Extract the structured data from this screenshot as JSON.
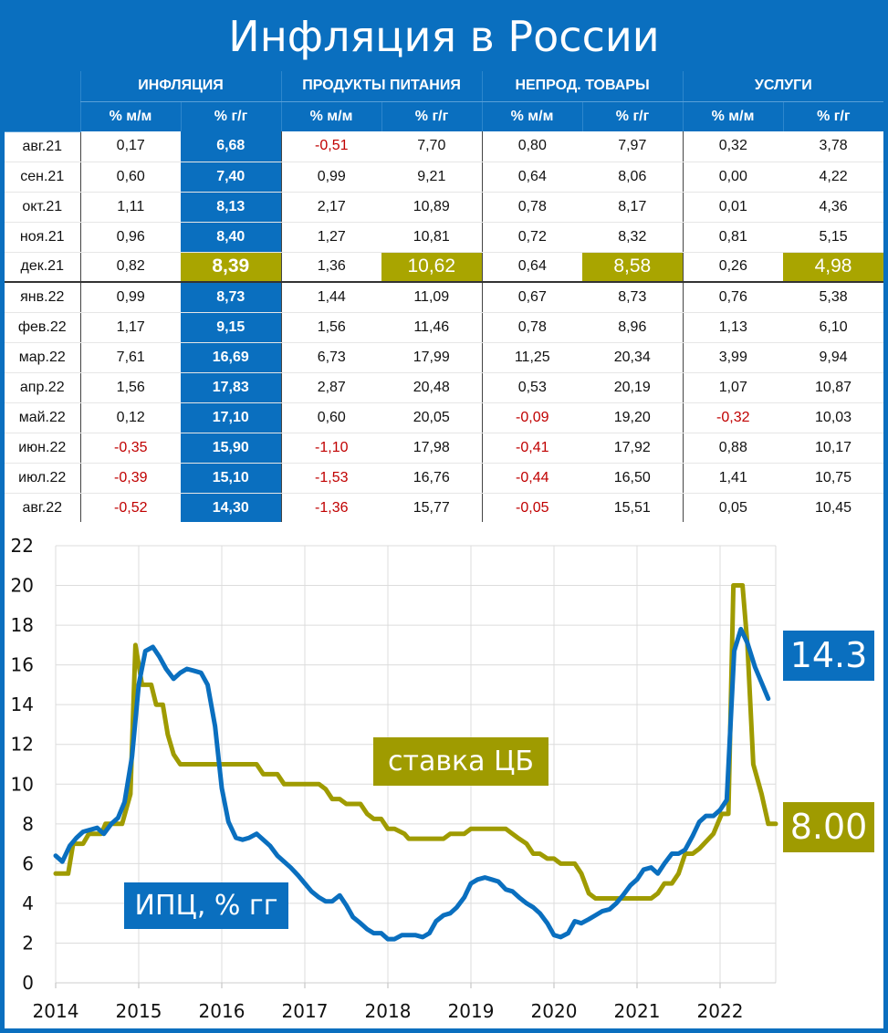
{
  "title": "Инфляция в России",
  "table": {
    "groups": [
      "ИНФЛЯЦИЯ",
      "ПРОДУКТЫ ПИТАНИЯ",
      "НЕПРОД. ТОВАРЫ",
      "УСЛУГИ"
    ],
    "subheaders": [
      "% м/м",
      "% г/г",
      "% м/м",
      "% г/г",
      "% м/м",
      "% г/г",
      "% м/м",
      "% г/г"
    ],
    "rows": [
      {
        "label": "авг.21",
        "values": [
          "0,17",
          "6,68",
          "-0,51",
          "7,70",
          "0,80",
          "7,97",
          "0,32",
          "3,78"
        ]
      },
      {
        "label": "сен.21",
        "values": [
          "0,60",
          "7,40",
          "0,99",
          "9,21",
          "0,64",
          "8,06",
          "0,00",
          "4,22"
        ]
      },
      {
        "label": "окт.21",
        "values": [
          "1,11",
          "8,13",
          "2,17",
          "10,89",
          "0,78",
          "8,17",
          "0,01",
          "4,36"
        ]
      },
      {
        "label": "ноя.21",
        "values": [
          "0,96",
          "8,40",
          "1,27",
          "10,81",
          "0,72",
          "8,32",
          "0,81",
          "5,15"
        ]
      },
      {
        "label": "дек.21",
        "values": [
          "0,82",
          "8,39",
          "1,36",
          "10,62",
          "0,64",
          "8,58",
          "0,26",
          "4,98"
        ],
        "highlight": true
      },
      {
        "label": "янв.22",
        "values": [
          "0,99",
          "8,73",
          "1,44",
          "11,09",
          "0,67",
          "8,73",
          "0,76",
          "5,38"
        ]
      },
      {
        "label": "фев.22",
        "values": [
          "1,17",
          "9,15",
          "1,56",
          "11,46",
          "0,78",
          "8,96",
          "1,13",
          "6,10"
        ]
      },
      {
        "label": "мар.22",
        "values": [
          "7,61",
          "16,69",
          "6,73",
          "17,99",
          "11,25",
          "20,34",
          "3,99",
          "9,94"
        ]
      },
      {
        "label": "апр.22",
        "values": [
          "1,56",
          "17,83",
          "2,87",
          "20,48",
          "0,53",
          "20,19",
          "1,07",
          "10,87"
        ]
      },
      {
        "label": "май.22",
        "values": [
          "0,12",
          "17,10",
          "0,60",
          "20,05",
          "-0,09",
          "19,20",
          "-0,32",
          "10,03"
        ]
      },
      {
        "label": "июн.22",
        "values": [
          "-0,35",
          "15,90",
          "-1,10",
          "17,98",
          "-0,41",
          "17,92",
          "0,88",
          "10,17"
        ]
      },
      {
        "label": "июл.22",
        "values": [
          "-0,39",
          "15,10",
          "-1,53",
          "16,76",
          "-0,44",
          "16,50",
          "1,41",
          "10,75"
        ]
      },
      {
        "label": "авг.22",
        "values": [
          "-0,52",
          "14,30",
          "-1,36",
          "15,77",
          "-0,05",
          "15,51",
          "0,05",
          "10,45"
        ]
      }
    ]
  },
  "chart_data": {
    "type": "line",
    "xlim": [
      2014,
      2022.67
    ],
    "ylim": [
      0,
      22
    ],
    "xticks": [
      "2014",
      "2015",
      "2016",
      "2017",
      "2018",
      "2019",
      "2020",
      "2021",
      "2022"
    ],
    "yticks": [
      "0",
      "2",
      "4",
      "6",
      "8",
      "10",
      "12",
      "14",
      "16",
      "18",
      "20",
      "22"
    ],
    "grid": true,
    "colors": {
      "cpi": "#0a6fbf",
      "rate": "#9f9b00"
    },
    "series": [
      {
        "name": "ИПЦ, % гг",
        "end_label": "14.3",
        "x": [
          2014,
          2014.08,
          2014.17,
          2014.25,
          2014.33,
          2014.5,
          2014.58,
          2014.67,
          2014.75,
          2014.83,
          2014.92,
          2015,
          2015.08,
          2015.17,
          2015.25,
          2015.33,
          2015.42,
          2015.5,
          2015.58,
          2015.67,
          2015.75,
          2015.83,
          2015.92,
          2016,
          2016.08,
          2016.17,
          2016.25,
          2016.33,
          2016.42,
          2016.5,
          2016.58,
          2016.67,
          2016.75,
          2016.83,
          2016.92,
          2017,
          2017.08,
          2017.17,
          2017.25,
          2017.33,
          2017.42,
          2017.5,
          2017.58,
          2017.67,
          2017.75,
          2017.83,
          2017.92,
          2018,
          2018.08,
          2018.17,
          2018.25,
          2018.33,
          2018.42,
          2018.5,
          2018.58,
          2018.67,
          2018.75,
          2018.83,
          2018.92,
          2019,
          2019.08,
          2019.17,
          2019.25,
          2019.33,
          2019.42,
          2019.5,
          2019.58,
          2019.67,
          2019.75,
          2019.83,
          2019.92,
          2020,
          2020.08,
          2020.17,
          2020.25,
          2020.33,
          2020.42,
          2020.5,
          2020.58,
          2020.67,
          2020.75,
          2020.83,
          2020.92,
          2021,
          2021.08,
          2021.17,
          2021.25,
          2021.33,
          2021.42,
          2021.5,
          2021.58,
          2021.67,
          2021.75,
          2021.83,
          2021.92,
          2022,
          2022.08,
          2022.17,
          2022.25,
          2022.33,
          2022.42,
          2022.5,
          2022.58
        ],
        "y": [
          6.4,
          6.1,
          6.9,
          7.3,
          7.6,
          7.8,
          7.5,
          8.0,
          8.3,
          9.1,
          11.4,
          15.0,
          16.7,
          16.9,
          16.4,
          15.8,
          15.3,
          15.6,
          15.8,
          15.7,
          15.6,
          15.0,
          12.9,
          9.8,
          8.1,
          7.3,
          7.2,
          7.3,
          7.5,
          7.2,
          6.9,
          6.4,
          6.1,
          5.8,
          5.4,
          5.0,
          4.6,
          4.3,
          4.1,
          4.1,
          4.4,
          3.9,
          3.3,
          3.0,
          2.7,
          2.5,
          2.5,
          2.2,
          2.2,
          2.4,
          2.4,
          2.4,
          2.3,
          2.5,
          3.1,
          3.4,
          3.5,
          3.8,
          4.3,
          5.0,
          5.2,
          5.3,
          5.2,
          5.1,
          4.7,
          4.6,
          4.3,
          4.0,
          3.8,
          3.5,
          3.0,
          2.4,
          2.3,
          2.5,
          3.1,
          3.0,
          3.2,
          3.4,
          3.6,
          3.7,
          4.0,
          4.4,
          4.9,
          5.2,
          5.7,
          5.8,
          5.5,
          6.0,
          6.5,
          6.5,
          6.7,
          7.4,
          8.1,
          8.4,
          8.4,
          8.7,
          9.2,
          16.7,
          17.8,
          17.1,
          15.9,
          15.1,
          14.3
        ]
      },
      {
        "name": "ставка ЦБ",
        "end_label": "8.00",
        "x": [
          2014,
          2014.15,
          2014.21,
          2014.33,
          2014.4,
          2014.55,
          2014.6,
          2014.8,
          2014.9,
          2014.96,
          2015.04,
          2015.15,
          2015.21,
          2015.29,
          2015.35,
          2015.42,
          2015.5,
          2015.58,
          2016.42,
          2016.5,
          2016.67,
          2016.75,
          2017.17,
          2017.25,
          2017.33,
          2017.42,
          2017.5,
          2017.67,
          2017.75,
          2017.83,
          2017.92,
          2018,
          2018.08,
          2018.2,
          2018.25,
          2018.67,
          2018.75,
          2018.92,
          2019,
          2019.42,
          2019.5,
          2019.58,
          2019.67,
          2019.75,
          2019.83,
          2019.92,
          2020,
          2020.08,
          2020.25,
          2020.33,
          2020.42,
          2020.5,
          2021.17,
          2021.25,
          2021.33,
          2021.42,
          2021.5,
          2021.58,
          2021.67,
          2021.75,
          2021.92,
          2022.02,
          2022.1,
          2022.16,
          2022.27,
          2022.33,
          2022.4,
          2022.5,
          2022.58,
          2022.67
        ],
        "y": [
          5.5,
          5.5,
          7.0,
          7.0,
          7.5,
          7.5,
          8.0,
          8.0,
          9.5,
          17.0,
          15.0,
          15.0,
          14.0,
          14.0,
          12.5,
          11.5,
          11.0,
          11.0,
          11.0,
          10.5,
          10.5,
          10.0,
          10.0,
          9.75,
          9.25,
          9.25,
          9.0,
          9.0,
          8.5,
          8.25,
          8.25,
          7.75,
          7.75,
          7.5,
          7.25,
          7.25,
          7.5,
          7.5,
          7.75,
          7.75,
          7.5,
          7.25,
          7.0,
          6.5,
          6.5,
          6.25,
          6.25,
          6.0,
          6.0,
          5.5,
          4.5,
          4.25,
          4.25,
          4.5,
          5.0,
          5.0,
          5.5,
          6.5,
          6.5,
          6.75,
          7.5,
          8.5,
          8.5,
          20,
          20,
          17,
          11,
          9.5,
          8.0,
          8.0
        ]
      }
    ]
  }
}
